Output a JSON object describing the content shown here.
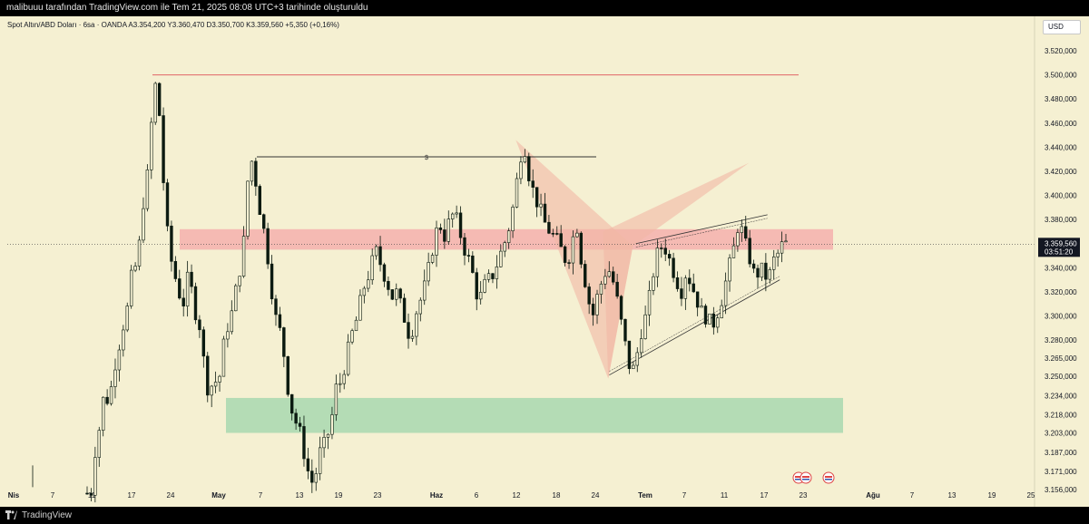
{
  "header": {
    "caption": "malibuuu tarafından TradingView.com ile Tem 21, 2025 08:08 UTC+3 tarihinde oluşturuldu"
  },
  "legend": {
    "text": "Spot Altın/ABD Doları · 6sa · OANDA  A3.354,200  Y3.360,470  D3.350,700  K3.359,560  +5,350 (+0,16%)"
  },
  "currency_button": {
    "label": "USD"
  },
  "footer": {
    "brand": "TradingView"
  },
  "price_badge": {
    "price": "3.359,560",
    "countdown": "03:51:20",
    "color": "#131722"
  },
  "annotation": {
    "label": "$"
  },
  "colors": {
    "up": "#0b1a10",
    "down": "#0b1a10",
    "background": "#f5f0d2",
    "resistance_zone": "#f4a8a8",
    "support_zone": "#a8d8b0",
    "pattern_fill": "#f1b8a5",
    "top_line": "#e06666"
  },
  "chart_data": {
    "type": "candlestick",
    "y_axis_labels": [
      "3.520,000",
      "3.500,000",
      "3.480,000",
      "3.460,000",
      "3.440,000",
      "3.420,000",
      "3.400,000",
      "3.380,000",
      "3.359,560",
      "3.340,000",
      "3.320,000",
      "3.300,000",
      "3.280,000",
      "3.265,000",
      "3.250,000",
      "3.234,000",
      "3.218,000",
      "3.203,000",
      "3.187,000",
      "3.171,000",
      "3.156,000"
    ],
    "y_axis_values": [
      3520,
      3500,
      3480,
      3460,
      3440,
      3420,
      3400,
      3380,
      3359.56,
      3340,
      3320,
      3300,
      3280,
      3265,
      3250,
      3234,
      3218,
      3203,
      3187,
      3171,
      3156
    ],
    "x_axis": [
      {
        "label": "Nis",
        "bold": true
      },
      {
        "label": "7"
      },
      {
        "label": "11"
      },
      {
        "label": "17"
      },
      {
        "label": "24"
      },
      {
        "label": "May",
        "bold": true
      },
      {
        "label": "7"
      },
      {
        "label": "13"
      },
      {
        "label": "19"
      },
      {
        "label": "23"
      },
      {
        "label": "Haz",
        "bold": true
      },
      {
        "label": "6"
      },
      {
        "label": "12"
      },
      {
        "label": "18"
      },
      {
        "label": "24"
      },
      {
        "label": "Tem",
        "bold": true
      },
      {
        "label": "7"
      },
      {
        "label": "11"
      },
      {
        "label": "17"
      },
      {
        "label": "23"
      },
      {
        "label": "Ağu",
        "bold": true
      },
      {
        "label": "7"
      },
      {
        "label": "13"
      },
      {
        "label": "19"
      },
      {
        "label": "25"
      }
    ],
    "price_path": [
      [
        3153,
        3155
      ],
      [
        3195,
        3210
      ],
      [
        3240,
        3225
      ],
      [
        3255,
        3270
      ],
      [
        3290,
        3300
      ],
      [
        3330,
        3340
      ],
      [
        3360,
        3400
      ],
      [
        3420,
        3475
      ],
      [
        3500,
        3440
      ],
      [
        3380,
        3350
      ],
      [
        3335,
        3320
      ],
      [
        3310,
        3330
      ],
      [
        3320,
        3300
      ],
      [
        3290,
        3250
      ],
      [
        3235,
        3250
      ],
      [
        3240,
        3270
      ],
      [
        3290,
        3300
      ],
      [
        3320,
        3340
      ],
      [
        3365,
        3425
      ],
      [
        3430,
        3400
      ],
      [
        3380,
        3360
      ],
      [
        3330,
        3300
      ],
      [
        3290,
        3270
      ],
      [
        3240,
        3220
      ],
      [
        3210,
        3200
      ],
      [
        3180,
        3165
      ],
      [
        3160,
        3185
      ],
      [
        3190,
        3200
      ],
      [
        3215,
        3240
      ],
      [
        3245,
        3260
      ],
      [
        3275,
        3290
      ],
      [
        3300,
        3320
      ],
      [
        3330,
        3340
      ],
      [
        3355,
        3345
      ],
      [
        3335,
        3325
      ],
      [
        3315,
        3320
      ],
      [
        3305,
        3295
      ],
      [
        3280,
        3300
      ],
      [
        3310,
        3320
      ],
      [
        3335,
        3355
      ],
      [
        3370,
        3375
      ],
      [
        3365,
        3380
      ],
      [
        3385,
        3375
      ],
      [
        3360,
        3350
      ],
      [
        3340,
        3320
      ],
      [
        3315,
        3325
      ],
      [
        3330,
        3335
      ],
      [
        3345,
        3355
      ],
      [
        3365,
        3380
      ],
      [
        3400,
        3430
      ],
      [
        3445,
        3420
      ],
      [
        3405,
        3395
      ],
      [
        3385,
        3375
      ],
      [
        3370,
        3365
      ],
      [
        3360,
        3350
      ],
      [
        3345,
        3360
      ],
      [
        3380,
        3350
      ],
      [
        3330,
        3310
      ],
      [
        3300,
        3320
      ],
      [
        3330,
        3340
      ],
      [
        3335,
        3320
      ],
      [
        3300,
        3280
      ],
      [
        3260,
        3255
      ],
      [
        3270,
        3290
      ],
      [
        3300,
        3320
      ],
      [
        3345,
        3355
      ],
      [
        3360,
        3350
      ],
      [
        3340,
        3330
      ],
      [
        3320,
        3335
      ],
      [
        3330,
        3320
      ],
      [
        3310,
        3300
      ],
      [
        3300,
        3290
      ],
      [
        3300,
        3310
      ],
      [
        3325,
        3340
      ],
      [
        3355,
        3375
      ],
      [
        3370,
        3355
      ],
      [
        3345,
        3330
      ],
      [
        3340,
        3335
      ],
      [
        3330,
        3345
      ],
      [
        3350,
        3358
      ],
      [
        3359.56
      ]
    ],
    "resistance_zone": [
      3355,
      3372
    ],
    "support_zone": [
      3203,
      3232
    ],
    "current_price": 3359.56,
    "top_level": 3500,
    "annotated_level": 3432,
    "harmonic_points": [
      [
        0.495,
        3446
      ],
      [
        0.609,
        3358
      ],
      [
        0.585,
        3248
      ],
      [
        0.722,
        3427
      ],
      [
        0.58,
        3370
      ]
    ],
    "channel": {
      "lower_start": [
        0.586,
        3251
      ],
      "lower_end": [
        0.752,
        3330
      ],
      "upper_start": [
        0.612,
        3360
      ],
      "upper_end": [
        0.74,
        3384
      ]
    }
  }
}
